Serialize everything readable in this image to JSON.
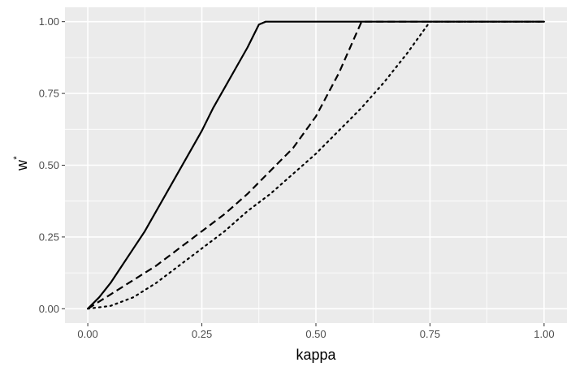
{
  "chart_data": {
    "type": "line",
    "title": "",
    "xlabel": "kappa",
    "ylabel": "w",
    "ylabel_superscript": "*",
    "xlim": [
      -0.05,
      1.05
    ],
    "ylim": [
      -0.05,
      1.05
    ],
    "x_ticks": [
      0.0,
      0.25,
      0.5,
      0.75,
      1.0
    ],
    "x_tick_labels": [
      "0.00",
      "0.25",
      "0.50",
      "0.75",
      "1.00"
    ],
    "y_ticks": [
      0.0,
      0.25,
      0.5,
      0.75,
      1.0
    ],
    "y_tick_labels": [
      "0.00",
      "0.25",
      "0.50",
      "0.75",
      "1.00"
    ],
    "grid": true,
    "legend": "none",
    "panel_color": "#ebebeb",
    "grid_color": "#ffffff",
    "series": [
      {
        "linetype": "solid",
        "color": "#000000",
        "x": [
          0.0,
          0.025,
          0.05,
          0.075,
          0.1,
          0.125,
          0.15,
          0.175,
          0.2,
          0.225,
          0.25,
          0.275,
          0.3,
          0.325,
          0.35,
          0.375,
          0.39,
          0.5,
          0.6,
          0.7,
          0.8,
          0.9,
          1.0
        ],
        "y": [
          0.0,
          0.04,
          0.09,
          0.15,
          0.21,
          0.27,
          0.34,
          0.41,
          0.48,
          0.55,
          0.62,
          0.7,
          0.77,
          0.84,
          0.91,
          0.99,
          1.0,
          1.0,
          1.0,
          1.0,
          1.0,
          1.0,
          1.0
        ]
      },
      {
        "linetype": "dashed",
        "color": "#000000",
        "x": [
          0.0,
          0.05,
          0.1,
          0.15,
          0.2,
          0.25,
          0.3,
          0.35,
          0.4,
          0.45,
          0.5,
          0.55,
          0.6,
          0.7,
          0.8,
          0.9,
          1.0
        ],
        "y": [
          0.0,
          0.05,
          0.1,
          0.15,
          0.21,
          0.27,
          0.33,
          0.4,
          0.48,
          0.56,
          0.67,
          0.82,
          1.0,
          1.0,
          1.0,
          1.0,
          1.0
        ]
      },
      {
        "linetype": "dotted",
        "color": "#000000",
        "x": [
          0.0,
          0.05,
          0.1,
          0.15,
          0.2,
          0.25,
          0.3,
          0.35,
          0.4,
          0.45,
          0.5,
          0.55,
          0.6,
          0.65,
          0.7,
          0.75,
          0.8,
          0.9,
          1.0
        ],
        "y": [
          0.0,
          0.01,
          0.04,
          0.09,
          0.15,
          0.21,
          0.27,
          0.34,
          0.4,
          0.47,
          0.54,
          0.62,
          0.7,
          0.79,
          0.89,
          1.0,
          1.0,
          1.0,
          1.0
        ]
      }
    ]
  }
}
